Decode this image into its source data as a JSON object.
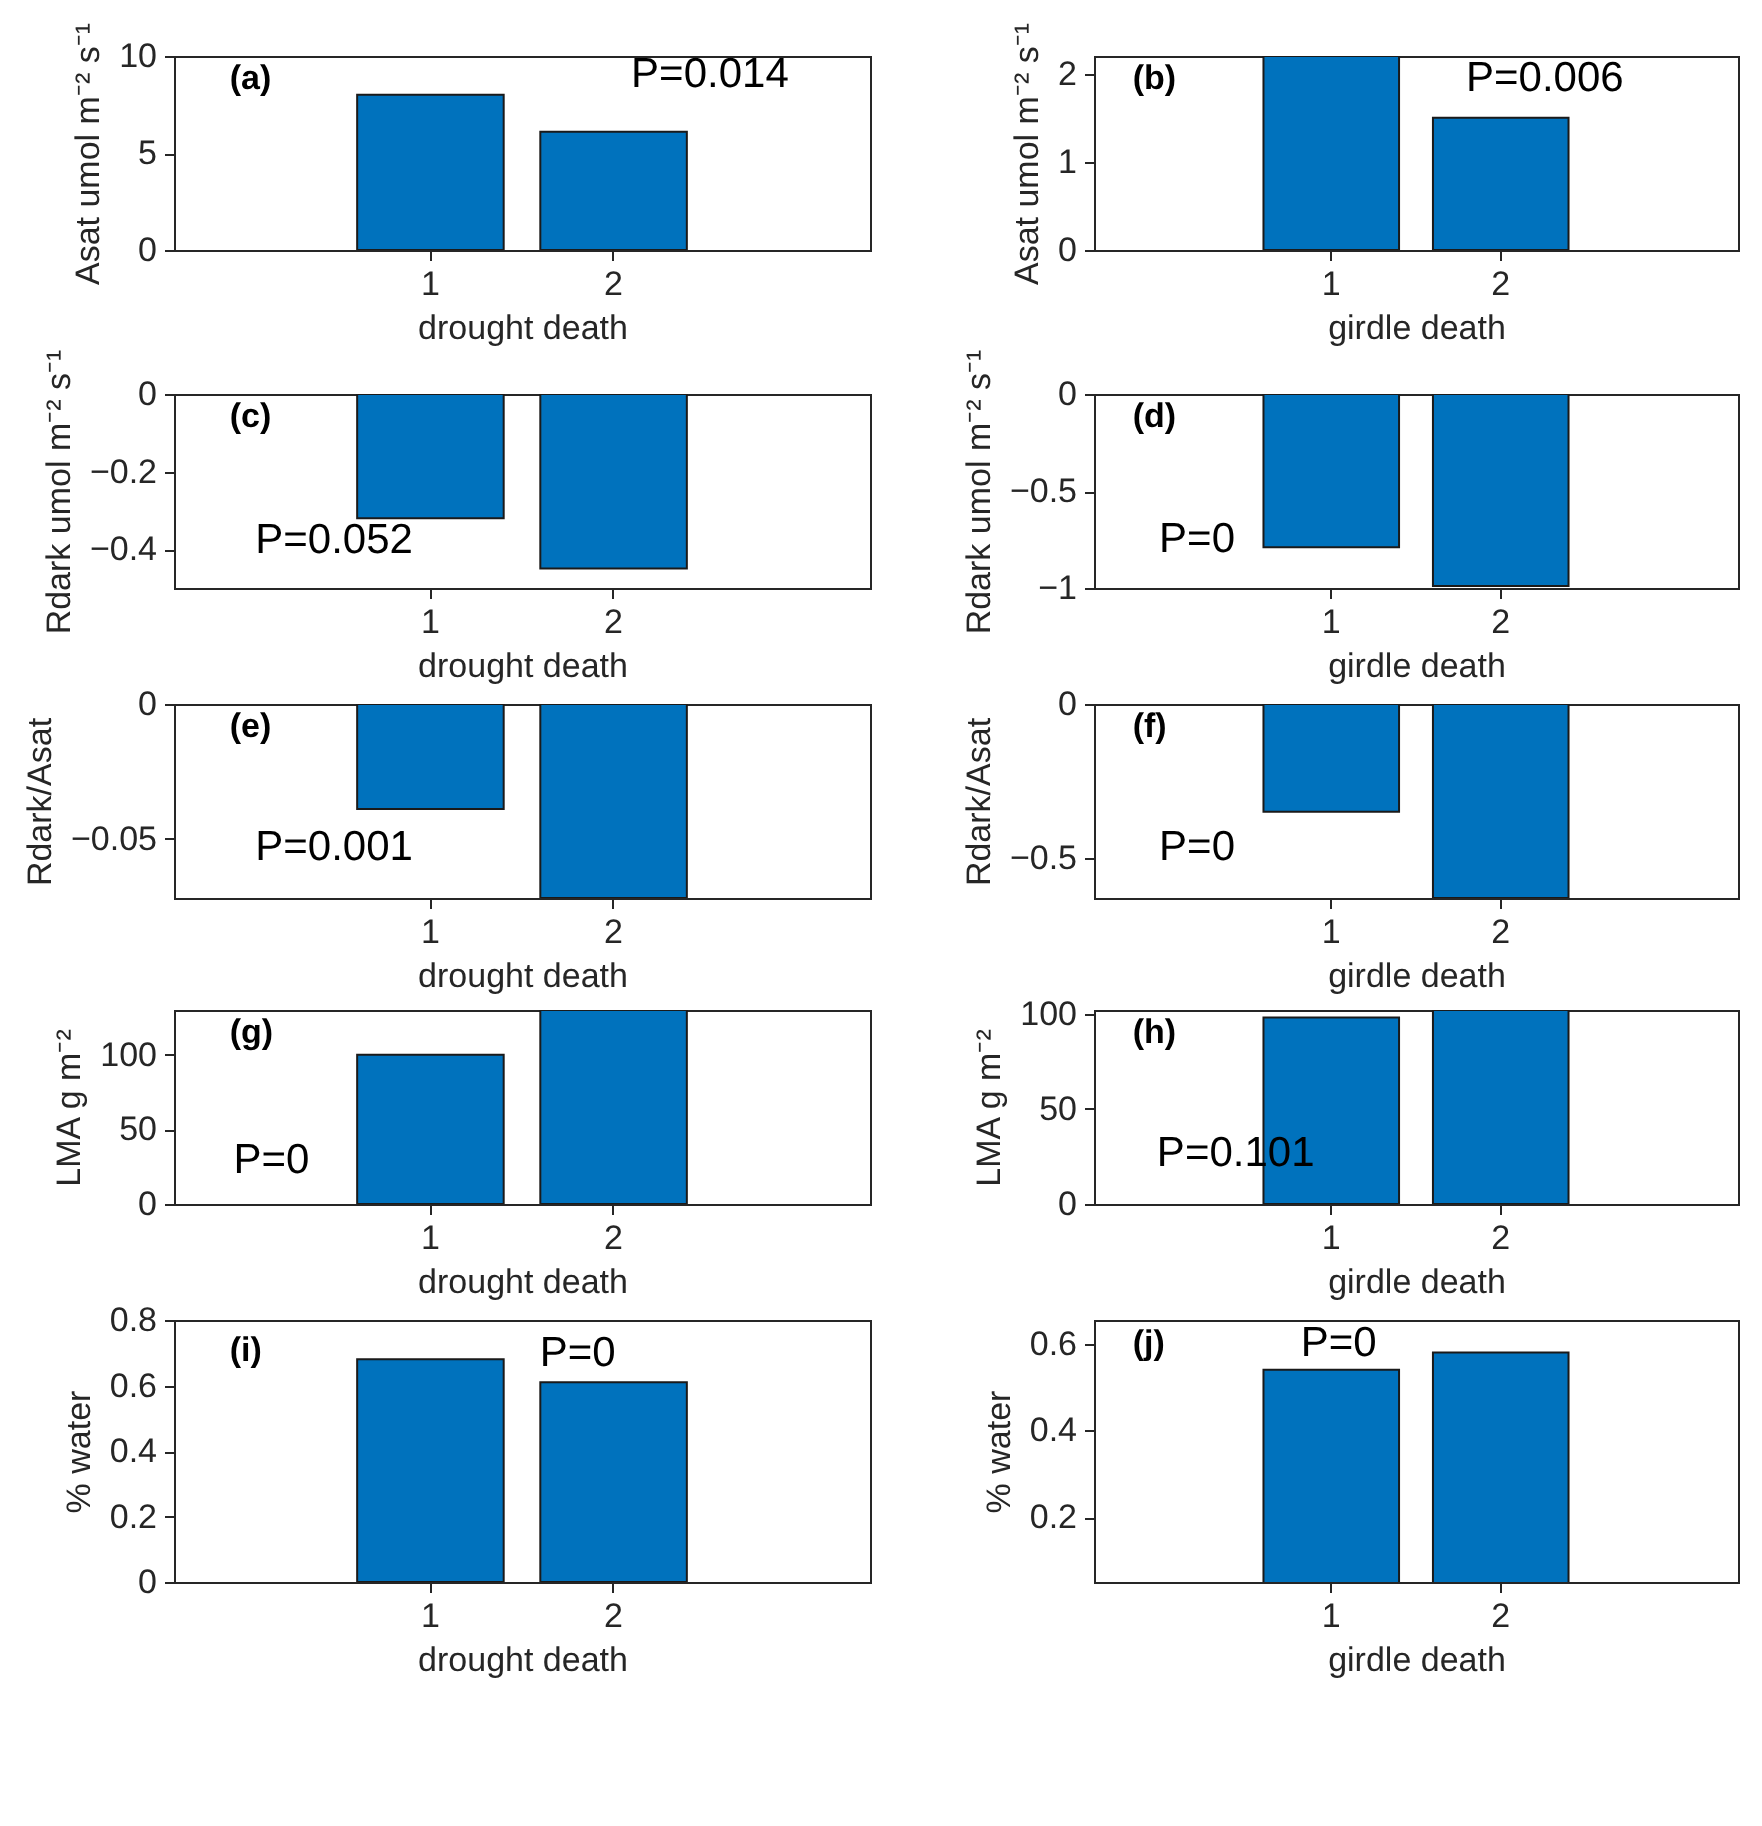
{
  "chart_data": [
    {
      "type": "bar",
      "categories": [
        "1",
        "2"
      ],
      "values": [
        8.0,
        6.1
      ],
      "color": "#0072bd",
      "ylim": [
        0,
        10
      ],
      "yticks": [
        0,
        5,
        10
      ],
      "xlabel": "drought death",
      "ylabel": "Asat umol m⁻² s⁻¹",
      "annotations": [
        "(a)",
        "P=0.014"
      ]
    },
    {
      "type": "bar",
      "categories": [
        "1",
        "2"
      ],
      "values": [
        2.2,
        1.5
      ],
      "color": "#0072bd",
      "ylim": [
        0,
        2.2
      ],
      "yticks": [
        0,
        1,
        2
      ],
      "xlabel": "girdle death",
      "ylabel": "Asat umol m⁻² s⁻¹",
      "annotations": [
        "(b)",
        "P=0.006"
      ]
    },
    {
      "type": "bar",
      "categories": [
        "1",
        "2"
      ],
      "values": [
        -0.32,
        -0.45
      ],
      "color": "#0072bd",
      "ylim": [
        -0.5,
        0
      ],
      "yticks": [
        -0.4,
        -0.2,
        0
      ],
      "xlabel": "drought death",
      "ylabel": "Rdark umol m⁻² s⁻¹",
      "annotations": [
        "(c)",
        "P=0.052"
      ]
    },
    {
      "type": "bar",
      "categories": [
        "1",
        "2"
      ],
      "values": [
        -0.79,
        -0.99
      ],
      "color": "#0072bd",
      "ylim": [
        -1,
        0
      ],
      "yticks": [
        -1,
        -0.5,
        0
      ],
      "xlabel": "girdle death",
      "ylabel": "Rdark umol m⁻² s⁻¹",
      "annotations": [
        "(d)",
        "P=0"
      ]
    },
    {
      "type": "bar",
      "categories": [
        "1",
        "2"
      ],
      "values": [
        -0.039,
        -0.072
      ],
      "color": "#0072bd",
      "ylim": [
        -0.072,
        0
      ],
      "yticks": [
        -0.05,
        0
      ],
      "xlabel": "drought death",
      "ylabel": "Rdark/Asat",
      "annotations": [
        "(e)",
        "P=0.001"
      ]
    },
    {
      "type": "bar",
      "categories": [
        "1",
        "2"
      ],
      "values": [
        -0.35,
        -0.63
      ],
      "color": "#0072bd",
      "ylim": [
        -0.63,
        0
      ],
      "yticks": [
        -0.5,
        0
      ],
      "xlabel": "girdle death",
      "ylabel": "Rdark/Asat",
      "annotations": [
        "(f)",
        "P=0"
      ]
    },
    {
      "type": "bar",
      "categories": [
        "1",
        "2"
      ],
      "values": [
        100,
        130
      ],
      "color": "#0072bd",
      "ylim": [
        0,
        130
      ],
      "yticks": [
        0,
        50,
        100
      ],
      "xlabel": "drought death",
      "ylabel": "LMA g m⁻²",
      "annotations": [
        "(g)",
        "P=0"
      ]
    },
    {
      "type": "bar",
      "categories": [
        "1",
        "2"
      ],
      "values": [
        98,
        102
      ],
      "color": "#0072bd",
      "ylim": [
        0,
        102
      ],
      "yticks": [
        0,
        50,
        100
      ],
      "xlabel": "girdle death",
      "ylabel": "LMA g m⁻²",
      "annotations": [
        "(h)",
        "P=0.101"
      ]
    },
    {
      "type": "bar",
      "categories": [
        "1",
        "2"
      ],
      "values": [
        0.68,
        0.61
      ],
      "color": "#0072bd",
      "ylim": [
        0,
        0.8
      ],
      "yticks": [
        0,
        0.2,
        0.4,
        0.6,
        0.8
      ],
      "xlabel": "drought death",
      "ylabel": "% water",
      "annotations": [
        "(i)",
        "P=0"
      ]
    },
    {
      "type": "bar",
      "categories": [
        "1",
        "2"
      ],
      "values": [
        0.54,
        0.58
      ],
      "color": "#0072bd",
      "ylim": [
        0.05,
        0.655
      ],
      "yticks": [
        0.2,
        0.4,
        0.6
      ],
      "xlabel": "girdle death",
      "ylabel": "% water",
      "annotations": [
        "(j)",
        "P=0"
      ]
    }
  ]
}
